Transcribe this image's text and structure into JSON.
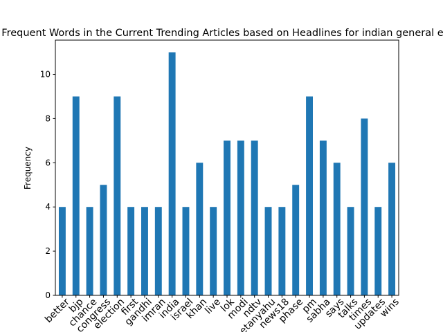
{
  "chart_data": {
    "type": "bar",
    "title": "Most Frequent Words in the Current Trending Articles based on Headlines for indian general elections",
    "xlabel": "",
    "ylabel": "Frequency",
    "ylim": [
      0,
      11.55
    ],
    "yticks": [
      0,
      2,
      4,
      6,
      8,
      10
    ],
    "grid": false,
    "legend": "none",
    "bar_color": "#1f77b4",
    "categories": [
      "better",
      "bjp",
      "chance",
      "congress",
      "election",
      "first",
      "gandhi",
      "imran",
      "india",
      "israel",
      "khan",
      "live",
      "lok",
      "modi",
      "ndtv",
      "netanyahu",
      "news18",
      "phase",
      "pm",
      "sabha",
      "says",
      "talks",
      "times",
      "updates",
      "wins"
    ],
    "values": [
      4,
      9,
      4,
      5,
      9,
      4,
      4,
      4,
      11,
      4,
      6,
      4,
      7,
      7,
      7,
      4,
      4,
      5,
      9,
      7,
      6,
      4,
      8,
      4,
      6
    ]
  }
}
